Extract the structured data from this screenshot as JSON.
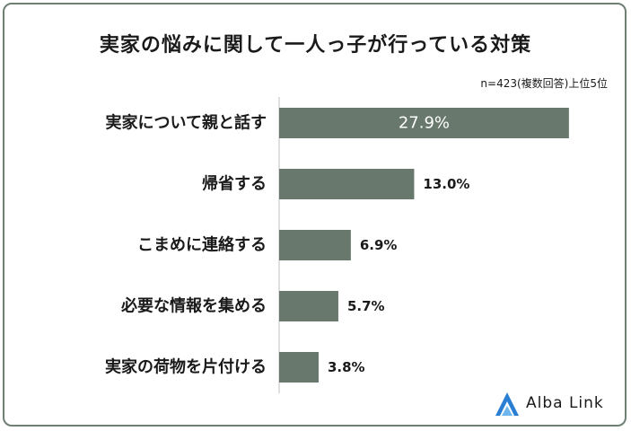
{
  "title": "実家の悩みに関して一人っ子が行っている対策",
  "note": "n=423(複数回答)上位5位",
  "logo_text": "Alba Link",
  "colors": {
    "bar": "#68786c",
    "frame": "#6e7f73",
    "logo": "#2a7fd4"
  },
  "chart_data": {
    "type": "bar",
    "orientation": "horizontal",
    "categories": [
      "実家について親と話す",
      "帰省する",
      "こまめに連絡する",
      "必要な情報を集める",
      "実家の荷物を片付ける"
    ],
    "values": [
      27.9,
      13.0,
      6.9,
      5.7,
      3.8
    ],
    "labels": [
      "27.9%",
      "13.0%",
      "6.9%",
      "5.7%",
      "3.8%"
    ],
    "unit": "%",
    "xlim": [
      0,
      28
    ],
    "grid": false,
    "legend": "none"
  }
}
